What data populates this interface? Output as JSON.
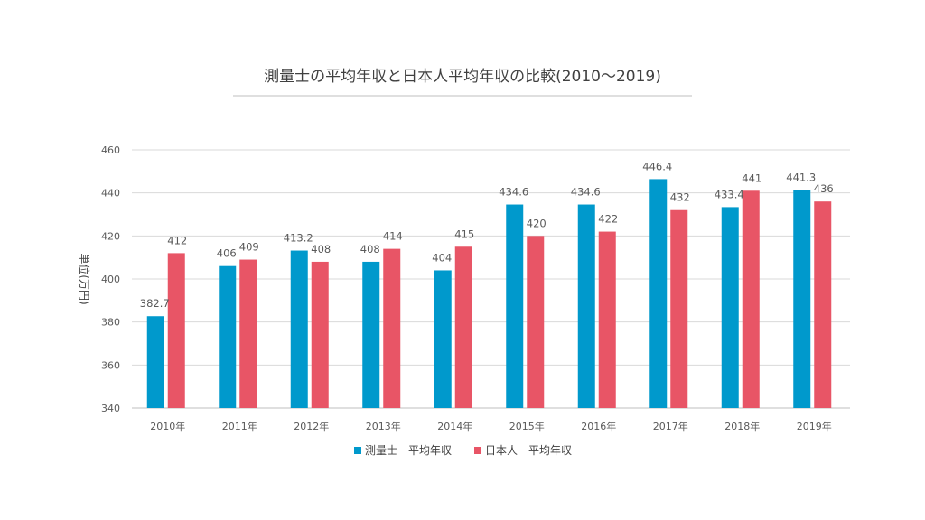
{
  "chart_data": {
    "type": "bar",
    "title": "測量士の平均年収と日本人平均年収の比較(2010～2019)",
    "ylabel": "単位(万円)",
    "xlabel": "",
    "ylim": [
      340,
      460
    ],
    "yticks": [
      "340",
      "360",
      "380",
      "400",
      "420",
      "440",
      "460"
    ],
    "grid": true,
    "legend_position": "bottom",
    "categories": [
      "2010年",
      "2011年",
      "2012年",
      "2013年",
      "2014年",
      "2015年",
      "2016年",
      "2017年",
      "2018年",
      "2019年"
    ],
    "series": [
      {
        "name": "測量士　平均年収",
        "color": "#0099CC",
        "values": [
          382.7,
          406,
          413.2,
          408,
          404,
          434.6,
          434.6,
          446.4,
          433.4,
          441.3
        ],
        "labels": [
          "382.7",
          "406",
          "413.2",
          "408",
          "404",
          "434.6",
          "434.6",
          "446.4",
          "433.4",
          "441.3"
        ]
      },
      {
        "name": "日本人　平均年収",
        "color": "#E85566",
        "values": [
          412,
          409,
          408,
          414,
          415,
          420,
          422,
          432,
          441,
          436
        ],
        "labels": [
          "412",
          "409",
          "408",
          "414",
          "415",
          "420",
          "422",
          "432",
          "441",
          "436"
        ]
      }
    ]
  }
}
